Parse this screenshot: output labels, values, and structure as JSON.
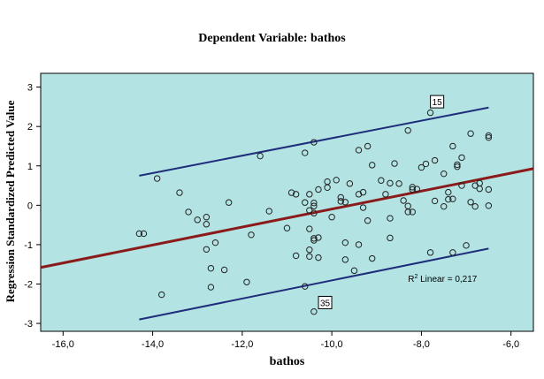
{
  "chart_data": {
    "type": "scatter",
    "title": "Dependent Variable: bathos",
    "xlabel": "bathos",
    "ylabel": "Regression Standardized Predicted Value",
    "xlim": [
      -16.5,
      -5.5
    ],
    "ylim": [
      -3.2,
      3.35
    ],
    "xticks": [
      -16,
      -14,
      -12,
      -10,
      -8,
      -6
    ],
    "xtick_labels": [
      "-16,0",
      "-14,0",
      "-12,0",
      "-10,0",
      "-8,0",
      "-6,0"
    ],
    "yticks": [
      -3,
      -2,
      -1,
      0,
      1,
      2,
      3
    ],
    "ytick_labels": [
      "-3",
      "-2",
      "-1",
      "0",
      "1",
      "2",
      "3"
    ],
    "grid": false,
    "colors": {
      "background": "#b3e3e3",
      "points": "#222222",
      "fit_line": "#8b1a1a",
      "interval_lines": "#1f2d7a"
    },
    "points": [
      {
        "x": -13.9,
        "y": 0.68
      },
      {
        "x": -13.8,
        "y": -2.27
      },
      {
        "x": -13.4,
        "y": 0.32
      },
      {
        "x": -13.2,
        "y": -0.17
      },
      {
        "x": -13.0,
        "y": -0.37
      },
      {
        "x": -12.8,
        "y": -0.3
      },
      {
        "x": -12.8,
        "y": -0.48
      },
      {
        "x": -12.8,
        "y": -1.12
      },
      {
        "x": -12.7,
        "y": -1.6
      },
      {
        "x": -12.7,
        "y": -2.08
      },
      {
        "x": -12.6,
        "y": -0.95
      },
      {
        "x": -12.4,
        "y": -1.64
      },
      {
        "x": -12.3,
        "y": 0.07
      },
      {
        "x": -11.9,
        "y": -1.95
      },
      {
        "x": -11.8,
        "y": -0.75
      },
      {
        "x": -11.6,
        "y": 1.25
      },
      {
        "x": -11.4,
        "y": -0.15
      },
      {
        "x": -11.0,
        "y": -0.58
      },
      {
        "x": -10.9,
        "y": 0.32
      },
      {
        "x": -10.8,
        "y": 0.28
      },
      {
        "x": -10.8,
        "y": -1.28
      },
      {
        "x": -10.6,
        "y": 0.07
      },
      {
        "x": -10.6,
        "y": 1.33
      },
      {
        "x": -10.6,
        "y": -2.06
      },
      {
        "x": -10.5,
        "y": 0.28
      },
      {
        "x": -10.5,
        "y": -0.13
      },
      {
        "x": -10.5,
        "y": -0.6
      },
      {
        "x": -10.5,
        "y": -1.13
      },
      {
        "x": -10.5,
        "y": -1.3
      },
      {
        "x": -10.4,
        "y": 1.6
      },
      {
        "x": -10.4,
        "y": 0.06
      },
      {
        "x": -10.4,
        "y": -0.02
      },
      {
        "x": -10.4,
        "y": -0.2
      },
      {
        "x": -10.4,
        "y": -0.84
      },
      {
        "x": -10.4,
        "y": -0.89
      },
      {
        "x": -10.3,
        "y": -0.82
      },
      {
        "x": -10.3,
        "y": 0.4
      },
      {
        "x": -10.3,
        "y": -1.33
      },
      {
        "x": -10.1,
        "y": 0.6
      },
      {
        "x": -10.1,
        "y": 0.45
      },
      {
        "x": -10.0,
        "y": -0.3
      },
      {
        "x": -9.9,
        "y": 0.64
      },
      {
        "x": -9.8,
        "y": 0.2
      },
      {
        "x": -9.8,
        "y": 0.1
      },
      {
        "x": -9.7,
        "y": 0.08
      },
      {
        "x": -9.7,
        "y": -0.95
      },
      {
        "x": -9.7,
        "y": -1.38
      },
      {
        "x": -9.6,
        "y": 0.55
      },
      {
        "x": -9.5,
        "y": -1.66
      },
      {
        "x": -9.4,
        "y": 1.4
      },
      {
        "x": -9.4,
        "y": 0.28
      },
      {
        "x": -9.4,
        "y": -1.0
      },
      {
        "x": -9.3,
        "y": 0.33
      },
      {
        "x": -9.3,
        "y": -0.06
      },
      {
        "x": -9.2,
        "y": 1.5
      },
      {
        "x": -9.2,
        "y": -0.39
      },
      {
        "x": -9.1,
        "y": 1.02
      },
      {
        "x": -9.1,
        "y": -1.35
      },
      {
        "x": -8.9,
        "y": 0.63
      },
      {
        "x": -8.8,
        "y": 0.28
      },
      {
        "x": -8.7,
        "y": 0.56
      },
      {
        "x": -8.7,
        "y": -0.33
      },
      {
        "x": -8.7,
        "y": -0.83
      },
      {
        "x": -8.6,
        "y": 1.06
      },
      {
        "x": -8.5,
        "y": 0.55
      },
      {
        "x": -8.4,
        "y": 0.12
      },
      {
        "x": -8.3,
        "y": 1.9
      },
      {
        "x": -8.3,
        "y": -0.02
      },
      {
        "x": -8.3,
        "y": -0.17
      },
      {
        "x": -8.2,
        "y": 0.46
      },
      {
        "x": -8.2,
        "y": 0.4
      },
      {
        "x": -8.2,
        "y": -0.17
      },
      {
        "x": -8.1,
        "y": 0.41
      },
      {
        "x": -8.0,
        "y": 0.96
      },
      {
        "x": -7.9,
        "y": 1.05
      },
      {
        "x": -7.8,
        "y": 2.35
      },
      {
        "x": -7.8,
        "y": -1.2
      },
      {
        "x": -7.7,
        "y": 1.14
      },
      {
        "x": -7.7,
        "y": 0.11
      },
      {
        "x": -7.5,
        "y": -0.03
      },
      {
        "x": -7.5,
        "y": 0.8
      },
      {
        "x": -7.4,
        "y": 0.33
      },
      {
        "x": -7.4,
        "y": 0.15
      },
      {
        "x": -7.3,
        "y": 1.5
      },
      {
        "x": -7.3,
        "y": 0.16
      },
      {
        "x": -7.3,
        "y": -1.2
      },
      {
        "x": -7.2,
        "y": 1.03
      },
      {
        "x": -7.2,
        "y": 0.98
      },
      {
        "x": -7.1,
        "y": 1.21
      },
      {
        "x": -7.1,
        "y": 0.5
      },
      {
        "x": -7.0,
        "y": -1.02
      },
      {
        "x": -6.9,
        "y": 1.82
      },
      {
        "x": -6.9,
        "y": 0.08
      },
      {
        "x": -6.8,
        "y": 0.5
      },
      {
        "x": -6.8,
        "y": -0.03
      },
      {
        "x": -6.7,
        "y": 0.56
      },
      {
        "x": -6.7,
        "y": 0.42
      },
      {
        "x": -6.5,
        "y": 1.77
      },
      {
        "x": -6.5,
        "y": 1.72
      },
      {
        "x": -6.5,
        "y": 0.4
      },
      {
        "x": -6.5,
        "y": -0.01
      },
      {
        "x": -14.3,
        "y": -0.72
      },
      {
        "x": -14.2,
        "y": -0.72
      },
      {
        "x": -10.4,
        "y": -2.7
      }
    ],
    "fit_line": {
      "x": [
        -16.5,
        -5.5
      ],
      "y": [
        -1.58,
        0.93
      ]
    },
    "upper_interval": {
      "x": [
        -14.3,
        -6.5
      ],
      "y": [
        0.75,
        2.48
      ]
    },
    "lower_interval": {
      "x": [
        -14.3,
        -6.5
      ],
      "y": [
        -2.9,
        -1.1
      ]
    },
    "annotations": [
      {
        "text": "15",
        "x": -7.65,
        "y": 2.63
      },
      {
        "text": "35",
        "x": -10.15,
        "y": -2.47
      },
      {
        "text_main": "R",
        "text_sup": "2",
        "text_rest": " Linear = 0,217",
        "x": -8.3,
        "y": -1.85
      }
    ]
  }
}
